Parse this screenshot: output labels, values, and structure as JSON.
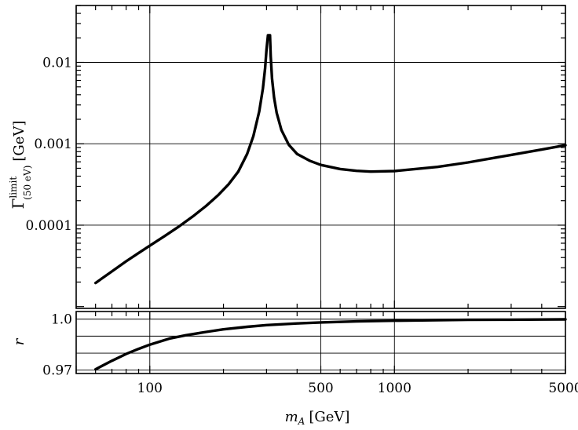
{
  "chart_data": [
    {
      "type": "line",
      "panel": "top",
      "xscale": "log",
      "yscale": "log",
      "xlim": [
        50,
        5000
      ],
      "ylim": [
        9.5e-06,
        0.05
      ],
      "yticks": [
        {
          "value": 0.0001,
          "label": "0.0001"
        },
        {
          "value": 0.001,
          "label": "0.001"
        },
        {
          "value": 0.01,
          "label": "0.01"
        }
      ],
      "ylabel_main": "Γ",
      "ylabel_sup": "limit",
      "ylabel_sub": "(50 eV)",
      "ylabel_unit": "[GeV]",
      "grid": true,
      "series": [
        {
          "x": [
            60,
            70,
            80,
            90,
            100,
            115,
            130,
            150,
            170,
            190,
            210,
            230,
            250,
            265,
            280,
            290,
            296,
            300,
            304,
            306,
            308,
            310,
            312,
            316,
            322,
            330,
            345,
            370,
            400,
            450,
            500,
            600,
            700,
            800,
            1000,
            1500,
            2000,
            3000,
            4000,
            5000
          ],
          "y": [
            1.95e-05,
            2.7e-05,
            3.6e-05,
            4.55e-05,
            5.6e-05,
            7.35e-05,
            9.4e-05,
            0.000128,
            0.000173,
            0.000233,
            0.000318,
            0.000455,
            0.00075,
            0.00124,
            0.0025,
            0.0048,
            0.0085,
            0.0145,
            0.0215,
            0.0215,
            0.0215,
            0.0215,
            0.012,
            0.0063,
            0.0037,
            0.0024,
            0.00148,
            0.00097,
            0.00075,
            0.00062,
            0.00055,
            0.00049,
            0.000465,
            0.000455,
            0.000462,
            0.00052,
            0.00059,
            0.00073,
            0.00085,
            0.00096
          ]
        }
      ]
    },
    {
      "type": "line",
      "panel": "bottom",
      "xscale": "log",
      "yscale": "linear",
      "xlim": [
        50,
        5000
      ],
      "ylim": [
        0.968,
        1.0045
      ],
      "gridlines_y": [
        0.97,
        0.98,
        0.99,
        1.0
      ],
      "yticks": [
        {
          "value": 0.97,
          "label": "0.97"
        },
        {
          "value": 1.0,
          "label": "1.0"
        }
      ],
      "xticks": [
        {
          "value": 100,
          "label": "100"
        },
        {
          "value": 500,
          "label": "500"
        },
        {
          "value": 1000,
          "label": "1000"
        },
        {
          "value": 5000,
          "label": "5000"
        }
      ],
      "ylabel": "r",
      "xlabel_main": "m",
      "xlabel_sub": "A",
      "xlabel_unit": "[GeV]",
      "grid": true,
      "series": [
        {
          "x": [
            60,
            70,
            80,
            90,
            100,
            120,
            140,
            170,
            200,
            250,
            300,
            400,
            500,
            700,
            1000,
            1500,
            2000,
            3000,
            4000,
            5000
          ],
          "y": [
            0.9705,
            0.9755,
            0.9795,
            0.9825,
            0.985,
            0.9885,
            0.9905,
            0.9925,
            0.994,
            0.9955,
            0.9965,
            0.9975,
            0.9981,
            0.9987,
            0.9991,
            0.9994,
            0.9996,
            0.9997,
            0.9998,
            0.9999
          ]
        }
      ]
    }
  ]
}
